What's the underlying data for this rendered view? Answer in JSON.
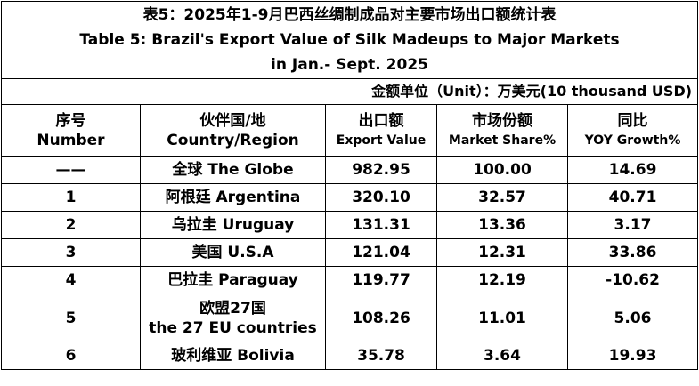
{
  "title": [
    "表5：2025年1-9月巴西丝绸制成品对主要市场出口额统计表",
    "Table 5: Brazil's Export Value of Silk Madeups to Major Markets",
    "in Jan.- Sept. 2025"
  ],
  "unit": "金额单位（Unit）：万美元(10 thousand USD)",
  "table": {
    "headers": [
      [
        "序号",
        "Number"
      ],
      [
        "伙伴国/地",
        "Country/Region"
      ],
      [
        "出口额",
        "Export Value"
      ],
      [
        "市场份额",
        "Market Share%"
      ],
      [
        "同比",
        "YOY Growth%"
      ]
    ],
    "rows": [
      {
        "number": "——",
        "country": [
          "全球 The Globe"
        ],
        "export_value": "982.95",
        "market_share": "100.00",
        "yoy_growth": "14.69"
      },
      {
        "number": "1",
        "country": [
          "阿根廷 Argentina"
        ],
        "export_value": "320.10",
        "market_share": "32.57",
        "yoy_growth": "40.71"
      },
      {
        "number": "2",
        "country": [
          "乌拉圭 Uruguay"
        ],
        "export_value": "131.31",
        "market_share": "13.36",
        "yoy_growth": "3.17"
      },
      {
        "number": "3",
        "country": [
          "美国  U.S.A"
        ],
        "export_value": "121.04",
        "market_share": "12.31",
        "yoy_growth": "33.86"
      },
      {
        "number": "4",
        "country": [
          "巴拉圭 Paraguay"
        ],
        "export_value": "119.77",
        "market_share": "12.19",
        "yoy_growth": "-10.62"
      },
      {
        "number": "5",
        "country": [
          "欧盟27国",
          "the 27 EU countries"
        ],
        "export_value": "108.26",
        "market_share": "11.01",
        "yoy_growth": "5.06"
      },
      {
        "number": "6",
        "country": [
          "玻利维亚 Bolivia"
        ],
        "export_value": "35.78",
        "market_share": "3.64",
        "yoy_growth": "19.93"
      }
    ]
  }
}
